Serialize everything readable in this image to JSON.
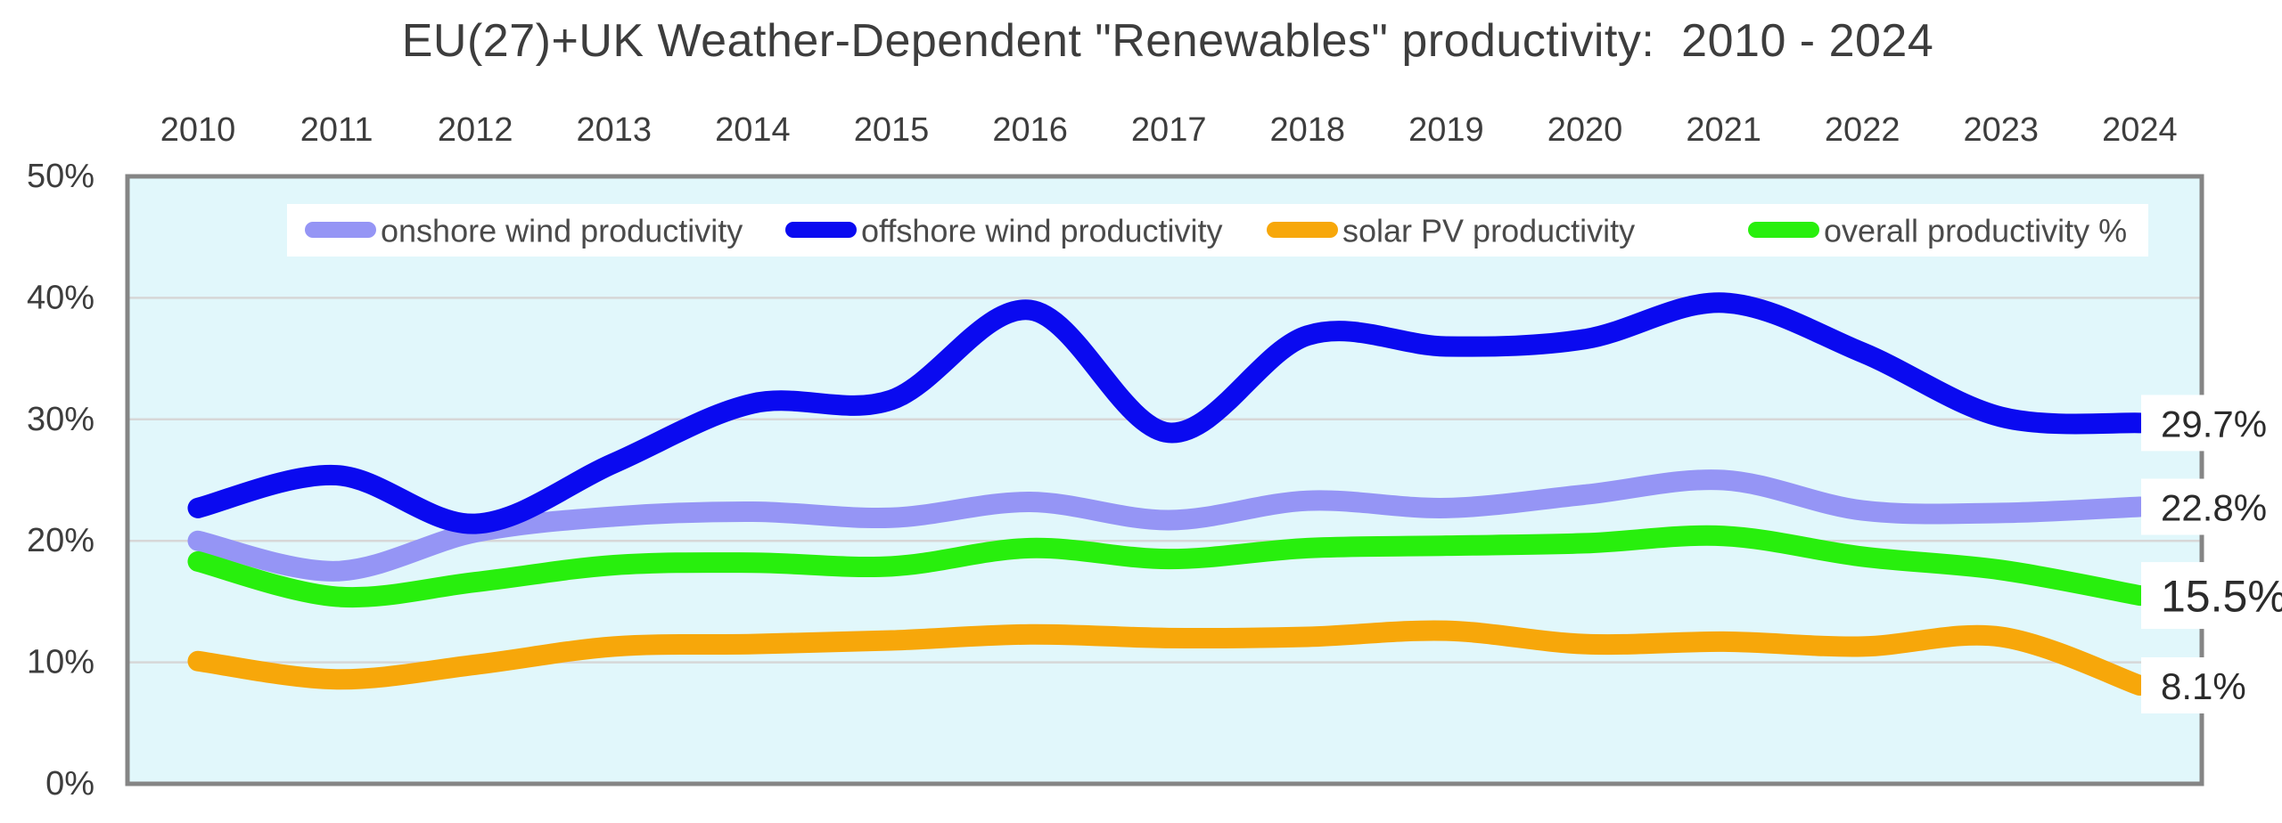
{
  "title": "EU(27)+UK Weather-Dependent \"Renewables\" productivity:  2010 - 2024",
  "colors": {
    "plot_background": "#e1f7fb",
    "plot_border": "#858585",
    "gridline": "#d7d7d7",
    "text": "#3d3d3d",
    "legend_background": "#ffffff",
    "end_label_background": "#ffffff"
  },
  "chart_data": {
    "type": "line",
    "title": "EU(27)+UK Weather-Dependent \"Renewables\" productivity:  2010 - 2024",
    "x": [
      2010,
      2011,
      2012,
      2013,
      2014,
      2015,
      2016,
      2017,
      2018,
      2019,
      2020,
      2021,
      2022,
      2023,
      2024
    ],
    "x_axis_position": "top",
    "ylim": [
      0,
      50
    ],
    "ytick_values": [
      50,
      40,
      30,
      20,
      10,
      0
    ],
    "ytick_labels": [
      "50%",
      "40%",
      "30%",
      "20%",
      "10%",
      "0%"
    ],
    "grid": true,
    "legend_position": "top-inside",
    "series": [
      {
        "name": "onshore wind productivity",
        "color": "#9595f5",
        "values": [
          20.0,
          17.5,
          20.7,
          22.0,
          22.4,
          21.9,
          23.2,
          21.7,
          23.3,
          22.7,
          23.8,
          25.0,
          22.5,
          22.3,
          22.8
        ],
        "end_label": "22.8%"
      },
      {
        "name": "offshore wind productivity",
        "color": "#0a0af0",
        "values": [
          22.7,
          25.4,
          21.4,
          26.4,
          31.3,
          31.6,
          39.0,
          28.9,
          36.9,
          36.0,
          36.6,
          39.6,
          35.5,
          30.2,
          29.7
        ],
        "end_label": "29.7%"
      },
      {
        "name": "solar PV productivity",
        "color": "#f7a70a",
        "values": [
          10.1,
          8.6,
          9.8,
          11.3,
          11.5,
          11.8,
          12.3,
          12.0,
          12.1,
          12.6,
          11.5,
          11.7,
          11.3,
          12.1,
          8.1
        ],
        "end_label": "8.1%"
      },
      {
        "name": "overall productivity %",
        "color": "#28ef0d",
        "values": [
          18.3,
          15.4,
          16.6,
          18.0,
          18.2,
          17.9,
          19.4,
          18.5,
          19.4,
          19.6,
          19.8,
          20.4,
          18.7,
          17.6,
          15.5
        ],
        "end_label": "15.5%"
      }
    ]
  }
}
